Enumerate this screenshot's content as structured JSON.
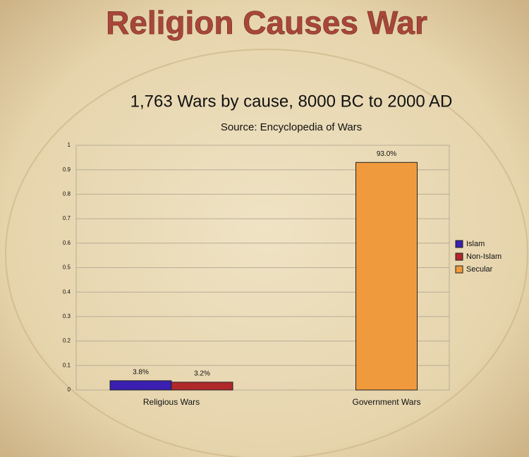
{
  "slide_title": "Religion Causes War",
  "chart_data": {
    "type": "bar",
    "title": "1,763 Wars by cause, 8000 BC to 2000 AD",
    "subtitle": "Source: Encyclopedia of Wars",
    "categories": [
      "Religious Wars",
      "Government Wars"
    ],
    "series": [
      {
        "name": "Islam",
        "color": "#3a1fb0",
        "values": [
          0.038,
          null
        ],
        "value_labels": [
          "3.8%",
          null
        ]
      },
      {
        "name": "Non-Islam",
        "color": "#b0282a",
        "values": [
          0.032,
          null
        ],
        "value_labels": [
          "3.2%",
          null
        ]
      },
      {
        "name": "Secular",
        "color": "#f09a3e",
        "values": [
          null,
          0.93
        ],
        "value_labels": [
          null,
          "93.0%"
        ]
      }
    ],
    "ylim": [
      0,
      1
    ],
    "yticks": [
      0,
      0.1,
      0.2,
      0.3,
      0.4,
      0.5,
      0.6,
      0.7,
      0.8,
      0.9,
      1
    ],
    "grid": true,
    "legend": "right"
  }
}
